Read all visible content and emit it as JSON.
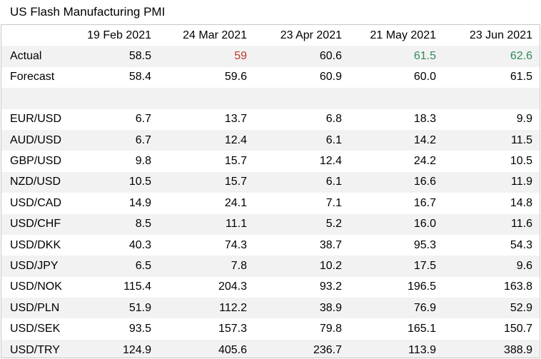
{
  "title": "US Flash Manufacturing PMI",
  "columns": [
    "19 Feb 2021",
    "24 Mar 2021",
    "23 Apr 2021",
    "21 May 2021",
    "23 Jun 2021"
  ],
  "actual": {
    "label": "Actual",
    "values": [
      "58.5",
      "59",
      "60.6",
      "61.5",
      "62.6"
    ],
    "colors": [
      "default",
      "red",
      "default",
      "green",
      "green"
    ]
  },
  "forecast": {
    "label": "Forecast",
    "values": [
      "58.4",
      "59.6",
      "60.9",
      "60.0",
      "61.5"
    ]
  },
  "pairs": [
    {
      "label": "EUR/USD",
      "values": [
        "6.7",
        "13.7",
        "6.8",
        "18.3",
        "9.9"
      ]
    },
    {
      "label": "AUD/USD",
      "values": [
        "6.7",
        "12.4",
        "6.1",
        "14.2",
        "11.5"
      ]
    },
    {
      "label": "GBP/USD",
      "values": [
        "9.8",
        "15.7",
        "12.4",
        "24.2",
        "10.5"
      ]
    },
    {
      "label": "NZD/USD",
      "values": [
        "10.5",
        "15.7",
        "6.1",
        "16.6",
        "11.9"
      ]
    },
    {
      "label": "USD/CAD",
      "values": [
        "14.9",
        "24.1",
        "7.1",
        "16.7",
        "14.8"
      ]
    },
    {
      "label": "USD/CHF",
      "values": [
        "8.5",
        "11.1",
        "5.2",
        "16.0",
        "11.6"
      ]
    },
    {
      "label": "USD/DKK",
      "values": [
        "40.3",
        "74.3",
        "38.7",
        "95.3",
        "54.3"
      ]
    },
    {
      "label": "USD/JPY",
      "values": [
        "6.5",
        "7.8",
        "10.2",
        "17.5",
        "9.6"
      ]
    },
    {
      "label": "USD/NOK",
      "values": [
        "115.4",
        "204.3",
        "93.2",
        "196.5",
        "163.8"
      ]
    },
    {
      "label": "USD/PLN",
      "values": [
        "51.9",
        "112.2",
        "38.9",
        "76.9",
        "52.9"
      ]
    },
    {
      "label": "USD/SEK",
      "values": [
        "93.5",
        "157.3",
        "79.8",
        "165.1",
        "150.7"
      ]
    },
    {
      "label": "USD/TRY",
      "values": [
        "124.9",
        "405.6",
        "236.7",
        "113.9",
        "388.9"
      ]
    }
  ]
}
